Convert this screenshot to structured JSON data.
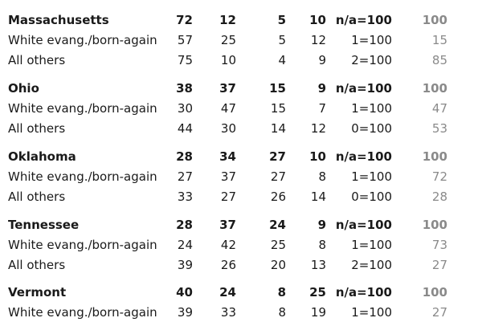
{
  "rows": [
    {
      "kind": "group",
      "label": "Massachusetts",
      "values": [
        "72",
        "12",
        "5",
        "10",
        "n/a=100",
        "100"
      ]
    },
    {
      "kind": "sub",
      "label": "White evang./born-again",
      "values": [
        "57",
        "25",
        "5",
        "12",
        "1=100",
        "15"
      ]
    },
    {
      "kind": "sub",
      "label": "All others",
      "values": [
        "75",
        "10",
        "4",
        "9",
        "2=100",
        "85"
      ]
    },
    {
      "kind": "group",
      "label": "Ohio",
      "values": [
        "38",
        "37",
        "15",
        "9",
        "n/a=100",
        "100"
      ]
    },
    {
      "kind": "sub",
      "label": "White evang./born-again",
      "values": [
        "30",
        "47",
        "15",
        "7",
        "1=100",
        "47"
      ]
    },
    {
      "kind": "sub",
      "label": "All others",
      "values": [
        "44",
        "30",
        "14",
        "12",
        "0=100",
        "53"
      ]
    },
    {
      "kind": "group",
      "label": "Oklahoma",
      "values": [
        "28",
        "34",
        "27",
        "10",
        "n/a=100",
        "100"
      ]
    },
    {
      "kind": "sub",
      "label": "White evang./born-again",
      "values": [
        "27",
        "37",
        "27",
        "8",
        "1=100",
        "72"
      ]
    },
    {
      "kind": "sub",
      "label": "All others",
      "values": [
        "33",
        "27",
        "26",
        "14",
        "0=100",
        "28"
      ]
    },
    {
      "kind": "group",
      "label": "Tennessee",
      "values": [
        "28",
        "37",
        "24",
        "9",
        "n/a=100",
        "100"
      ]
    },
    {
      "kind": "sub",
      "label": "White evang./born-again",
      "values": [
        "24",
        "42",
        "25",
        "8",
        "1=100",
        "73"
      ]
    },
    {
      "kind": "sub",
      "label": "All others",
      "values": [
        "39",
        "26",
        "20",
        "13",
        "2=100",
        "27"
      ]
    },
    {
      "kind": "group",
      "label": "Vermont",
      "values": [
        "40",
        "24",
        "8",
        "25",
        "n/a=100",
        "100"
      ]
    },
    {
      "kind": "sub",
      "label": "White evang./born-again",
      "values": [
        "39",
        "33",
        "8",
        "19",
        "1=100",
        "27"
      ]
    }
  ],
  "colors": {
    "text": "#1a1a1a",
    "last_column": "#8a8a8a"
  }
}
